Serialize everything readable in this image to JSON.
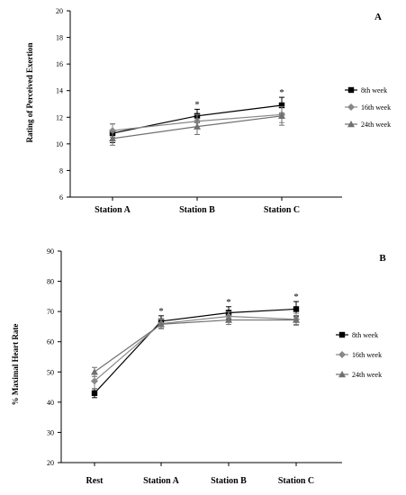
{
  "chart_data": [
    {
      "panel_label": "A",
      "type": "line",
      "ylabel": "Rating of Perceived Exertion",
      "ylim": [
        6,
        20
      ],
      "yticks": [
        6,
        8,
        10,
        12,
        14,
        16,
        18,
        20
      ],
      "categories": [
        "Station A",
        "Station B",
        "Station C"
      ],
      "legend_position": "right",
      "significance": [
        "",
        "*",
        "*"
      ],
      "series": [
        {
          "name": "8th week",
          "color": "#000000",
          "marker": "square",
          "values": [
            10.8,
            12.1,
            12.9
          ],
          "errors": [
            0.7,
            0.5,
            0.6
          ]
        },
        {
          "name": "16th week",
          "color": "#888888",
          "marker": "diamond",
          "values": [
            11.0,
            11.7,
            12.2
          ],
          "errors": [
            0.5,
            0.5,
            0.6
          ]
        },
        {
          "name": "24th week",
          "color": "#707070",
          "marker": "triangle",
          "values": [
            10.4,
            11.3,
            12.1
          ],
          "errors": [
            0.5,
            0.6,
            0.7
          ]
        }
      ]
    },
    {
      "panel_label": "B",
      "type": "line",
      "ylabel": "% Maximal Heart Rate",
      "ylim": [
        20,
        90
      ],
      "yticks": [
        20,
        30,
        40,
        50,
        60,
        70,
        80,
        90
      ],
      "categories": [
        "Rest",
        "Station A",
        "Station B",
        "Station C"
      ],
      "legend_position": "right",
      "significance": [
        "",
        "*",
        "*",
        "*"
      ],
      "series": [
        {
          "name": "8th week",
          "color": "#000000",
          "marker": "square",
          "values": [
            43.0,
            66.8,
            69.6,
            70.8
          ],
          "errors": [
            1.5,
            1.8,
            2.0,
            2.5
          ]
        },
        {
          "name": "16th week",
          "color": "#888888",
          "marker": "diamond",
          "values": [
            47.0,
            66.0,
            68.4,
            67.4
          ],
          "errors": [
            2.5,
            1.5,
            1.5,
            2.0
          ]
        },
        {
          "name": "24th week",
          "color": "#707070",
          "marker": "triangle",
          "values": [
            50.0,
            65.8,
            67.2,
            67.2
          ],
          "errors": [
            1.5,
            1.5,
            1.5,
            1.5
          ]
        }
      ]
    }
  ]
}
